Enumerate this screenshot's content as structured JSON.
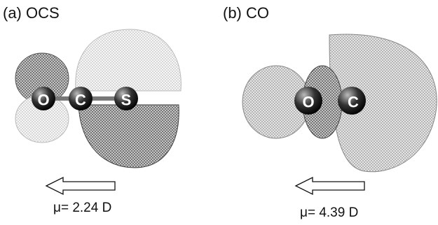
{
  "panels": [
    {
      "label": "(a) OCS",
      "atoms": [
        "O",
        "C",
        "S"
      ],
      "dipole": "μ= 2.24 D"
    },
    {
      "label": "(b)  CO",
      "atoms": [
        "O",
        "C"
      ],
      "dipole": "μ= 4.39 D"
    }
  ]
}
